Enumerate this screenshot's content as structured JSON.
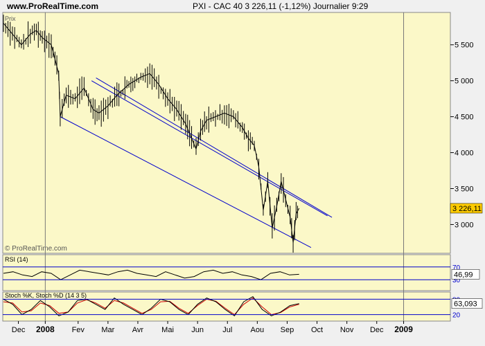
{
  "header": {
    "site": "www.ProRealTime.com",
    "title": "PXI - CAC 40    3 226,11 (-1,12%)    Journalier  9:29"
  },
  "main_panel": {
    "label": "Prix",
    "watermark": "© ProRealTime.com",
    "background": "#fbf8c8"
  },
  "rsi_panel": {
    "label": "RSI (14)",
    "levels": [
      "70",
      "30"
    ],
    "value_label": "46,99",
    "ylim": [
      0,
      100
    ]
  },
  "stoch_panel": {
    "label": "Stoch %K, Stoch %D (14 3 5)",
    "levels": [
      "80",
      "20"
    ],
    "value_label": "63,093",
    "ylim": [
      0,
      100
    ]
  },
  "x_axis_labels": [
    "Dec",
    "2008",
    "Fev",
    "Mar",
    "Avr",
    "Mai",
    "Jun",
    "Jul",
    "Aou",
    "Sep",
    "Oct",
    "Nov",
    "Dec",
    "2009"
  ],
  "chart_data": {
    "type": "line",
    "title": "PXI - CAC 40",
    "ylabel": "Prix",
    "ylim": [
      2600,
      5950
    ],
    "y_ticks": [
      3000,
      3500,
      4000,
      4500,
      5000,
      5500
    ],
    "y_tick_labels": [
      "3 000",
      "3 500",
      "4 000",
      "4 500",
      "5 000",
      "5 500"
    ],
    "last_value_label": "3 226,11",
    "x_label_positions": [
      0.5,
      1.4,
      2.5,
      3.5,
      4.5,
      5.5,
      6.5,
      7.5,
      8.5,
      9.5,
      10.5,
      11.5,
      12.5,
      13.4
    ],
    "series": [
      {
        "values": [
          [
            0.0,
            5800
          ],
          [
            0.3,
            5650
          ],
          [
            0.6,
            5500
          ],
          [
            0.9,
            5650
          ],
          [
            1.1,
            5700
          ],
          [
            1.3,
            5600
          ],
          [
            1.6,
            5500
          ],
          [
            1.85,
            5100
          ],
          [
            1.9,
            4500
          ],
          [
            2.1,
            4800
          ],
          [
            2.4,
            4750
          ],
          [
            2.7,
            4900
          ],
          [
            3.0,
            4600
          ],
          [
            3.2,
            4550
          ],
          [
            3.5,
            4650
          ],
          [
            3.8,
            4800
          ],
          [
            4.2,
            4950
          ],
          [
            4.6,
            5050
          ],
          [
            4.9,
            5100
          ],
          [
            5.2,
            4950
          ],
          [
            5.5,
            4750
          ],
          [
            5.8,
            4600
          ],
          [
            6.1,
            4400
          ],
          [
            6.3,
            4200
          ],
          [
            6.45,
            4050
          ],
          [
            6.6,
            4300
          ],
          [
            6.8,
            4450
          ],
          [
            7.1,
            4500
          ],
          [
            7.4,
            4550
          ],
          [
            7.7,
            4500
          ],
          [
            8.0,
            4350
          ],
          [
            8.2,
            4200
          ],
          [
            8.4,
            4100
          ],
          [
            8.55,
            3800
          ],
          [
            8.7,
            3200
          ],
          [
            8.85,
            3600
          ],
          [
            9.0,
            2950
          ],
          [
            9.15,
            3250
          ],
          [
            9.3,
            3600
          ],
          [
            9.45,
            3350
          ],
          [
            9.6,
            3100
          ],
          [
            9.7,
            2750
          ],
          [
            9.8,
            3150
          ],
          [
            9.9,
            3226
          ]
        ]
      }
    ],
    "channel_lines": [
      {
        "from": [
          2.95,
          5000
        ],
        "to": [
          10.85,
          3120
        ]
      },
      {
        "from": [
          3.1,
          5040
        ],
        "to": [
          11.0,
          3100
        ]
      },
      {
        "from": [
          1.9,
          4500
        ],
        "to": [
          10.3,
          2680
        ]
      }
    ]
  },
  "rsi_data": [
    50,
    55,
    45,
    40,
    55,
    50,
    30,
    45,
    60,
    55,
    50,
    45,
    55,
    60,
    50,
    45,
    40,
    55,
    45,
    35,
    40,
    55,
    60,
    50,
    55,
    45,
    40,
    30,
    50,
    55,
    45,
    47
  ],
  "stoch_data": {
    "k": [
      80,
      60,
      20,
      40,
      75,
      50,
      15,
      30,
      75,
      80,
      60,
      40,
      85,
      60,
      40,
      20,
      45,
      80,
      70,
      40,
      20,
      60,
      85,
      70,
      40,
      15,
      70,
      90,
      40,
      15,
      30,
      55,
      63
    ],
    "d": [
      70,
      65,
      30,
      35,
      65,
      55,
      25,
      30,
      65,
      78,
      65,
      45,
      75,
      65,
      45,
      25,
      40,
      70,
      72,
      45,
      25,
      55,
      80,
      72,
      45,
      20,
      60,
      85,
      50,
      20,
      28,
      50,
      60
    ]
  },
  "colors": {
    "price": "#000000",
    "channel": "#0000cc",
    "rsi": "#000000",
    "stoch_k": "#000000",
    "stoch_d": "#cc0000",
    "value_box": "#ffcc00",
    "level_line": "#0000cc"
  }
}
